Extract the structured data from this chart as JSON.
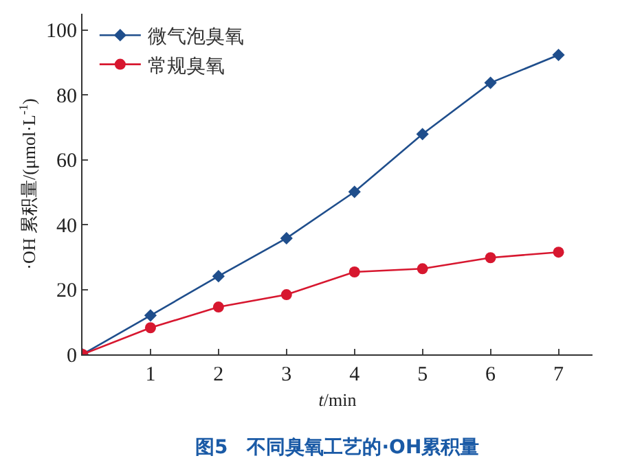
{
  "chart_data": {
    "type": "line",
    "x": [
      0,
      1,
      2,
      3,
      4,
      5,
      6,
      7
    ],
    "series": [
      {
        "name": "微气泡臭氧",
        "color": "#1f4e8c",
        "marker": "diamond",
        "values": [
          0,
          12.0,
          24.1,
          35.8,
          50.1,
          67.9,
          83.7,
          92.3
        ]
      },
      {
        "name": "常规臭氧",
        "color": "#d7172f",
        "marker": "circle",
        "values": [
          0,
          8.2,
          14.6,
          18.4,
          25.4,
          26.4,
          29.8,
          31.5
        ]
      }
    ],
    "xlabel": "t/min",
    "ylabel": "·OH 累积量/(μmol·L$^{-1}$)",
    "xlim": [
      0,
      7.5
    ],
    "xticks": [
      1,
      2,
      3,
      4,
      5,
      6,
      7
    ],
    "ylim": [
      0,
      105
    ],
    "yticks": [
      0,
      20,
      40,
      60,
      80,
      100
    ],
    "legend": "top left",
    "line_style": "solid",
    "annotations": [
      "图5　不同臭氧工艺的·OH累积量"
    ]
  }
}
